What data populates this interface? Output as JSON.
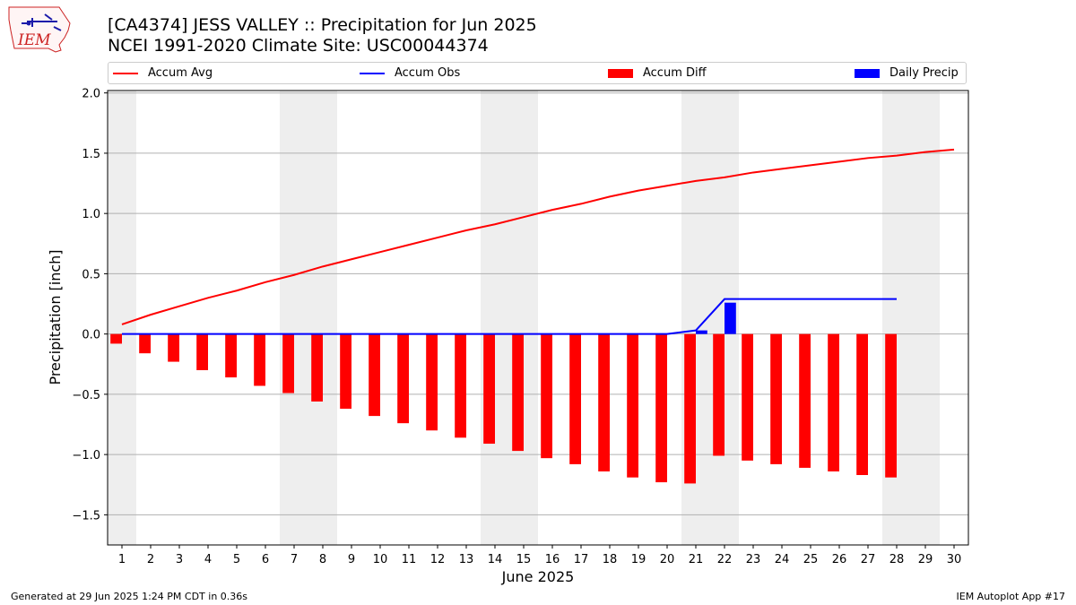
{
  "header": {
    "logo_text": "IEM",
    "title_line1": "[CA4374] JESS VALLEY :: Precipitation for Jun 2025",
    "title_line2": "NCEI 1991-2020 Climate Site: USC00044374"
  },
  "legend": {
    "accum_avg": "Accum Avg",
    "accum_obs": "Accum Obs",
    "accum_diff": "Accum Diff",
    "daily_precip": "Daily Precip"
  },
  "colors": {
    "avg": "#ff0000",
    "obs": "#0000ff",
    "diff": "#ff0000",
    "daily": "#0000ff",
    "weekend_band": "#eeeeee",
    "grid": "#b0b0b0"
  },
  "chart_data": {
    "type": "bar",
    "title": "[CA4374] JESS VALLEY :: Precipitation for Jun 2025",
    "subtitle": "NCEI 1991-2020 Climate Site: USC00044374",
    "xlabel": "June 2025",
    "ylabel": "Precipitation [inch]",
    "ylim": [
      -1.75,
      2.02
    ],
    "xlim": [
      0.5,
      30.5
    ],
    "yticks": [
      -1.5,
      -1.0,
      -0.5,
      0.0,
      0.5,
      1.0,
      1.5,
      2.0
    ],
    "ytick_labels": [
      "−1.5",
      "−1.0",
      "−0.5",
      "0.0",
      "0.5",
      "1.0",
      "1.5",
      "2.0"
    ],
    "days": [
      1,
      2,
      3,
      4,
      5,
      6,
      7,
      8,
      9,
      10,
      11,
      12,
      13,
      14,
      15,
      16,
      17,
      18,
      19,
      20,
      21,
      22,
      23,
      24,
      25,
      26,
      27,
      28,
      29,
      30
    ],
    "weekend_bands": [
      [
        0.5,
        1.5
      ],
      [
        6.5,
        8.5
      ],
      [
        13.5,
        15.5
      ],
      [
        20.5,
        22.5
      ],
      [
        27.5,
        29.5
      ]
    ],
    "grid": "horizontal",
    "legend_position": "top",
    "series": [
      {
        "name": "Accum Avg",
        "type": "line",
        "values": [
          0.08,
          0.16,
          0.23,
          0.3,
          0.36,
          0.43,
          0.49,
          0.56,
          0.62,
          0.68,
          0.74,
          0.8,
          0.86,
          0.91,
          0.97,
          1.03,
          1.08,
          1.14,
          1.19,
          1.23,
          1.27,
          1.3,
          1.34,
          1.37,
          1.4,
          1.43,
          1.46,
          1.48,
          1.51,
          1.53
        ]
      },
      {
        "name": "Accum Obs",
        "type": "line",
        "values": [
          0,
          0,
          0,
          0,
          0,
          0,
          0,
          0,
          0,
          0,
          0,
          0,
          0,
          0,
          0,
          0,
          0,
          0,
          0,
          0,
          0.03,
          0.29,
          0.29,
          0.29,
          0.29,
          0.29,
          0.29,
          0.29
        ]
      },
      {
        "name": "Accum Diff",
        "type": "bar",
        "values": [
          -0.08,
          -0.16,
          -0.23,
          -0.3,
          -0.36,
          -0.43,
          -0.49,
          -0.56,
          -0.62,
          -0.68,
          -0.74,
          -0.8,
          -0.86,
          -0.91,
          -0.97,
          -1.03,
          -1.08,
          -1.14,
          -1.19,
          -1.23,
          -1.24,
          -1.01,
          -1.05,
          -1.08,
          -1.11,
          -1.14,
          -1.17,
          -1.19
        ]
      },
      {
        "name": "Daily Precip",
        "type": "bar",
        "values": [
          0,
          0,
          0,
          0,
          0,
          0,
          0,
          0,
          0,
          0,
          0,
          0,
          0,
          0,
          0,
          0,
          0,
          0,
          0,
          0,
          0.03,
          0.26,
          0,
          0,
          0,
          0,
          0,
          0
        ]
      }
    ]
  },
  "footer": {
    "generated": "Generated at 29 Jun 2025 1:24 PM CDT in 0.36s",
    "app": "IEM Autoplot App #17"
  }
}
